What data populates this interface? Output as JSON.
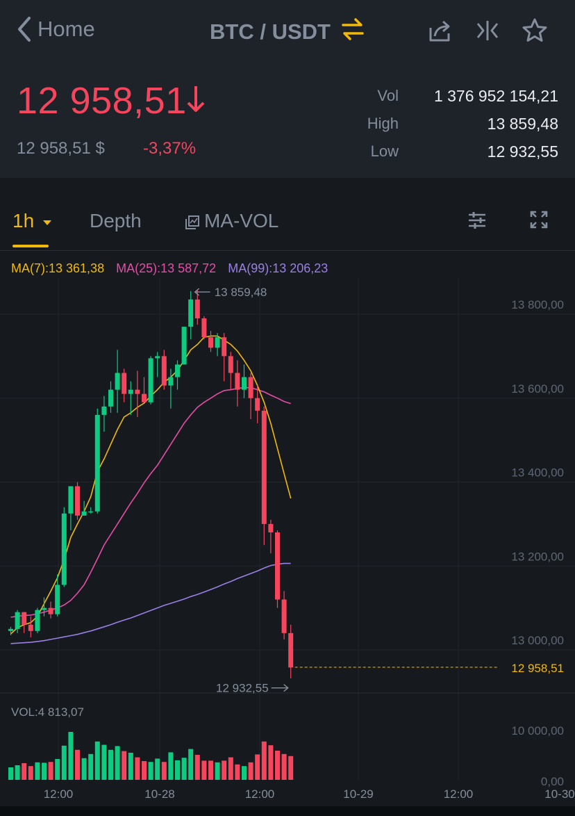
{
  "header": {
    "back_label": "Home",
    "pair": "BTC / USDT"
  },
  "ticker": {
    "price": "12 958,51",
    "fiat": "12 958,51 $",
    "change": "-3,37%",
    "stats": [
      {
        "label": "Vol",
        "value": "1 376 952 154,21"
      },
      {
        "label": "High",
        "value": "13 859,48"
      },
      {
        "label": "Low",
        "value": "12 932,55"
      }
    ]
  },
  "tabs": {
    "interval": "1h",
    "depth": "Depth",
    "indicator": "MA-VOL"
  },
  "ma": {
    "ma7": "MA(7):13 361,38",
    "ma25": "MA(25):13 587,72",
    "ma99": "MA(99):13 206,23"
  },
  "colors": {
    "up": "#0ecb81",
    "down": "#f6465d",
    "accent": "#f0b90b",
    "ma7": "#f0b90b",
    "ma25": "#e84ca8",
    "ma99": "#9b7fe6"
  },
  "chart_data": {
    "type": "candlestick",
    "title": "",
    "price_ticks": [
      "13 800,00",
      "13 600,00",
      "13 400,00",
      "13 200,00",
      "13 000,00"
    ],
    "price_tick_values": [
      13800,
      13600,
      13400,
      13200,
      13000
    ],
    "volume_ticks": [
      "10 000,00",
      "0,00"
    ],
    "volume_tick_values": [
      10000,
      0
    ],
    "time_labels": [
      "12:00",
      "10-28",
      "12:00",
      "10-29",
      "12:00",
      "10-30"
    ],
    "last_price_label": "12 958,51",
    "last_price": 12958.51,
    "high_label": "13 859,48",
    "high": 13859.48,
    "low_label": "12 932,55",
    "low": 12932.55,
    "volume_label": "VOL:4 813,07",
    "volume_max": 12000,
    "candles": [
      [
        13045,
        13055,
        13035,
        13050,
        3000
      ],
      [
        13050,
        13095,
        13040,
        13090,
        3500
      ],
      [
        13090,
        13090,
        13040,
        13060,
        4000
      ],
      [
        13060,
        13080,
        13030,
        13045,
        3300
      ],
      [
        13045,
        13100,
        13040,
        13095,
        4200
      ],
      [
        13095,
        13125,
        13080,
        13100,
        4100
      ],
      [
        13100,
        13115,
        13075,
        13085,
        4300
      ],
      [
        13085,
        13180,
        13080,
        13155,
        5000
      ],
      [
        13155,
        13340,
        13150,
        13325,
        8200
      ],
      [
        13325,
        13390,
        13285,
        13390,
        11500
      ],
      [
        13390,
        13400,
        13310,
        13320,
        7200
      ],
      [
        13320,
        13355,
        13320,
        13330,
        5200
      ],
      [
        13330,
        13340,
        13325,
        13330,
        6200
      ],
      [
        13330,
        13575,
        13325,
        13560,
        9200
      ],
      [
        13560,
        13605,
        13520,
        13580,
        8400
      ],
      [
        13580,
        13640,
        13565,
        13620,
        7200
      ],
      [
        13620,
        13715,
        13565,
        13660,
        8100
      ],
      [
        13660,
        13670,
        13590,
        13610,
        6900
      ],
      [
        13610,
        13640,
        13560,
        13620,
        6500
      ],
      [
        13620,
        13665,
        13555,
        13610,
        5400
      ],
      [
        13610,
        13650,
        13590,
        13590,
        4500
      ],
      [
        13590,
        13700,
        13585,
        13695,
        4300
      ],
      [
        13695,
        13710,
        13650,
        13700,
        5100
      ],
      [
        13700,
        13715,
        13620,
        13630,
        4300
      ],
      [
        13630,
        13670,
        13575,
        13650,
        6600
      ],
      [
        13650,
        13690,
        13620,
        13680,
        4700
      ],
      [
        13680,
        13770,
        13680,
        13770,
        5300
      ],
      [
        13770,
        13855,
        13740,
        13835,
        7400
      ],
      [
        13835,
        13859,
        13775,
        13790,
        6000
      ],
      [
        13790,
        13795,
        13740,
        13745,
        4600
      ],
      [
        13745,
        13760,
        13710,
        13720,
        4600
      ],
      [
        13720,
        13755,
        13700,
        13745,
        4200
      ],
      [
        13745,
        13755,
        13640,
        13700,
        4600
      ],
      [
        13700,
        13710,
        13620,
        13660,
        5400
      ],
      [
        13660,
        13690,
        13580,
        13620,
        3700
      ],
      [
        13620,
        13680,
        13600,
        13650,
        3300
      ],
      [
        13650,
        13660,
        13550,
        13600,
        4200
      ],
      [
        13600,
        13630,
        13540,
        13570,
        6100
      ],
      [
        13570,
        13580,
        13250,
        13300,
        9200
      ],
      [
        13300,
        13310,
        13230,
        13280,
        8300
      ],
      [
        13280,
        13285,
        13100,
        13120,
        7000
      ],
      [
        13120,
        13140,
        13025,
        13040,
        6200
      ],
      [
        13040,
        13060,
        12932,
        12958,
        5700
      ]
    ],
    "ma7": [
      13038,
      13053,
      13060,
      13065,
      13080,
      13110,
      13140,
      13172,
      13215,
      13268,
      13300,
      13330,
      13365,
      13425,
      13455,
      13490,
      13525,
      13555,
      13565,
      13578,
      13588,
      13605,
      13620,
      13638,
      13650,
      13666,
      13690,
      13715,
      13728,
      13745,
      13748,
      13748,
      13738,
      13728,
      13712,
      13690,
      13665,
      13630,
      13590,
      13540,
      13480,
      13420,
      13361
    ],
    "ma25": [
      13078,
      13080,
      13082,
      13083,
      13086,
      13090,
      13095,
      13100,
      13107,
      13118,
      13135,
      13155,
      13185,
      13217,
      13250,
      13275,
      13300,
      13325,
      13350,
      13373,
      13398,
      13420,
      13440,
      13465,
      13490,
      13515,
      13540,
      13560,
      13578,
      13590,
      13600,
      13610,
      13618,
      13620,
      13623,
      13625,
      13625,
      13620,
      13615,
      13607,
      13600,
      13592,
      13587
    ],
    "ma99": [
      13015,
      13016,
      13017,
      13018,
      13020,
      13022,
      13025,
      13028,
      13031,
      13034,
      13037,
      13041,
      13045,
      13050,
      13055,
      13060,
      13066,
      13071,
      13076,
      13082,
      13088,
      13094,
      13100,
      13106,
      13111,
      13116,
      13121,
      13127,
      13132,
      13138,
      13144,
      13150,
      13157,
      13163,
      13170,
      13176,
      13182,
      13188,
      13195,
      13201,
      13204,
      13206,
      13206
    ]
  }
}
